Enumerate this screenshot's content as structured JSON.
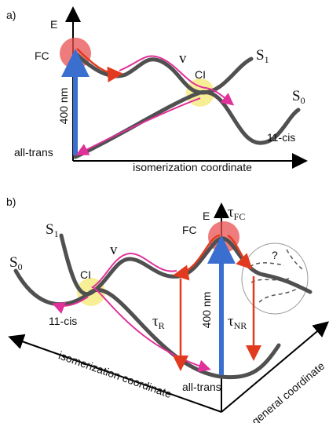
{
  "panel_a": {
    "label": "a)",
    "axis_y": "E",
    "axis_x": "isomerization coordinate",
    "fc": "FC",
    "v": "v",
    "ci": "CI",
    "s1": {
      "base": "S",
      "sub": "1"
    },
    "s0": {
      "base": "S",
      "sub": "0"
    },
    "excitation": "400 nm",
    "all_trans": "all-trans",
    "cis": "11-cis"
  },
  "panel_b": {
    "label": "b)",
    "axis_y": "E",
    "axis_x": "isomerization coordinate",
    "axis_z": "general coordinate",
    "fc": "FC",
    "v": "v",
    "ci": "CI",
    "s1": {
      "base": "S",
      "sub": "1"
    },
    "s0": {
      "base": "S",
      "sub": "0"
    },
    "excitation": "400 nm",
    "all_trans": "all-trans",
    "cis": "11-cis",
    "tau_fc": {
      "base": "τ",
      "sub": "FC"
    },
    "tau_r": {
      "base": "τ",
      "sub": "R"
    },
    "tau_nr": {
      "base": "τ",
      "sub": "NR"
    },
    "unknown": "?"
  }
}
